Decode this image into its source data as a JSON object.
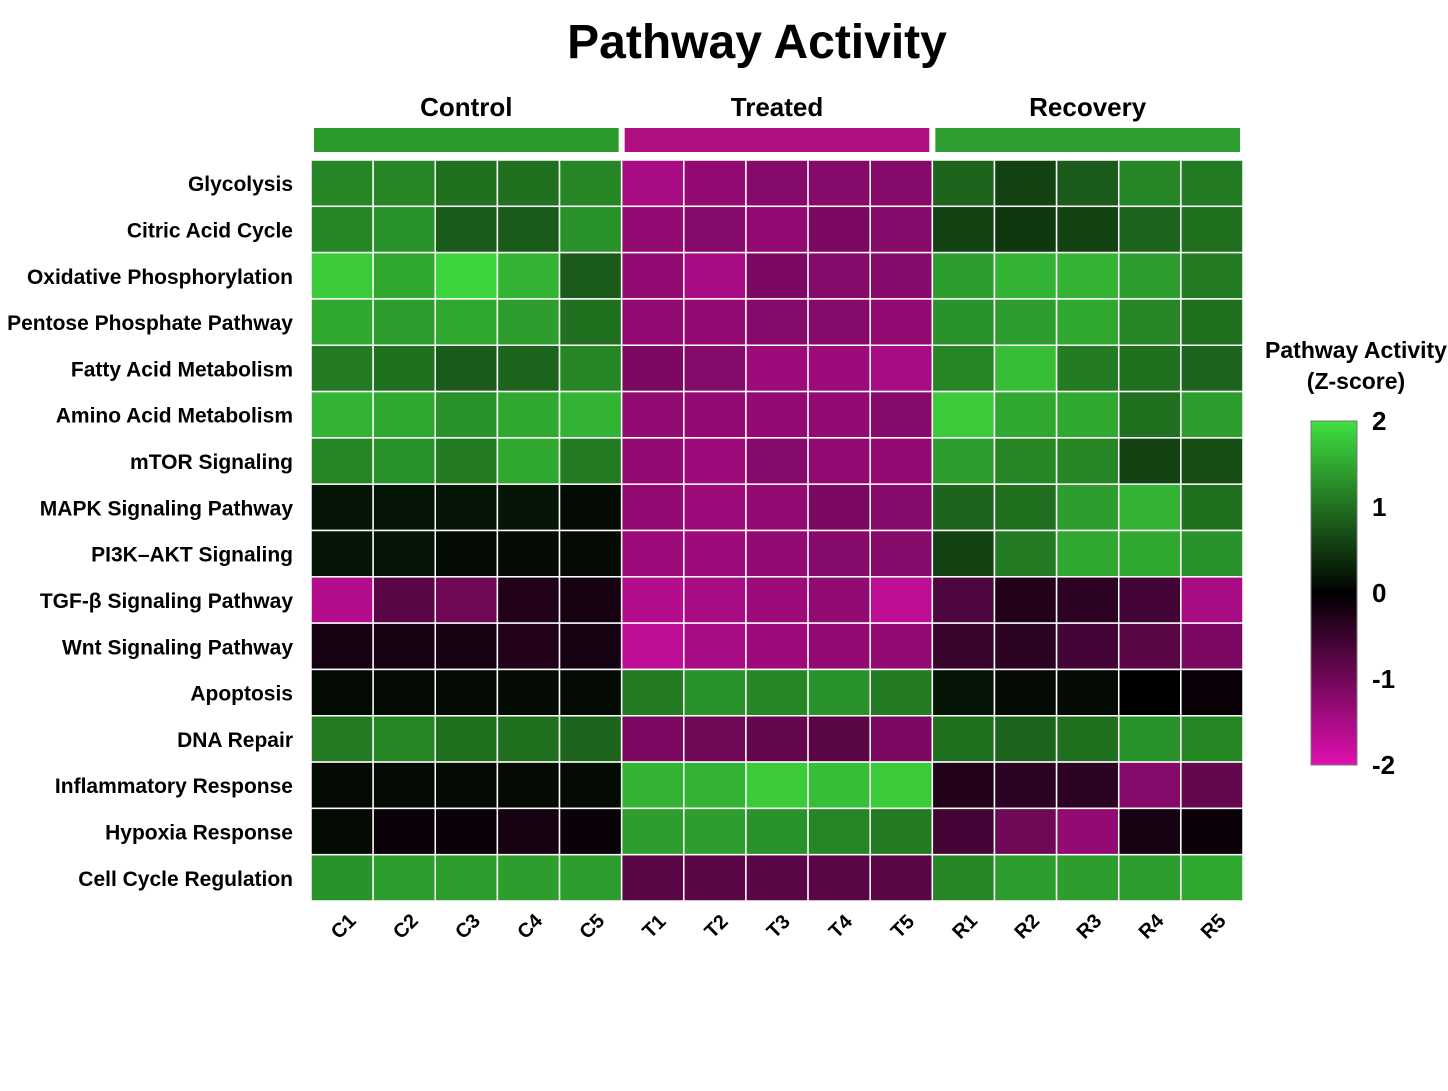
{
  "chart_data": {
    "type": "heatmap",
    "title": "Pathway Activity",
    "groups": [
      {
        "name": "Control",
        "color": "#2a9a2a",
        "columns": [
          "C1",
          "C2",
          "C3",
          "C4",
          "C5"
        ]
      },
      {
        "name": "Treated",
        "color": "#b0107f",
        "columns": [
          "T1",
          "T2",
          "T3",
          "T4",
          "T5"
        ]
      },
      {
        "name": "Recovery",
        "color": "#2e9e30",
        "columns": [
          "R1",
          "R2",
          "R3",
          "R4",
          "R5"
        ]
      }
    ],
    "columns": [
      "C1",
      "C2",
      "C3",
      "C4",
      "C5",
      "T1",
      "T2",
      "T3",
      "T4",
      "T5",
      "R1",
      "R2",
      "R3",
      "R4",
      "R5"
    ],
    "rows": [
      "Glycolysis",
      "Citric Acid Cycle",
      "Oxidative Phosphorylation",
      "Pentose Phosphate Pathway",
      "Fatty Acid Metabolism",
      "Amino Acid Metabolism",
      "mTOR Signaling",
      "MAPK Signaling Pathway",
      "PI3K–AKT Signaling",
      "TGF-β Signaling Pathway",
      "Wnt Signaling Pathway",
      "Apoptosis",
      "DNA Repair",
      "Inflammatory Response",
      "Hypoxia Response",
      "Cell Cycle Regulation"
    ],
    "values": [
      [
        1.2,
        1.2,
        1.0,
        1.0,
        1.2,
        -1.5,
        -1.3,
        -1.2,
        -1.2,
        -1.2,
        0.9,
        0.6,
        0.8,
        1.2,
        1.1
      ],
      [
        1.2,
        1.3,
        0.8,
        0.8,
        1.3,
        -1.3,
        -1.2,
        -1.3,
        -1.1,
        -1.2,
        0.6,
        0.5,
        0.6,
        0.9,
        1.0
      ],
      [
        1.8,
        1.5,
        1.9,
        1.6,
        0.8,
        -1.3,
        -1.5,
        -1.1,
        -1.2,
        -1.2,
        1.4,
        1.6,
        1.6,
        1.4,
        1.1
      ],
      [
        1.5,
        1.4,
        1.5,
        1.4,
        1.0,
        -1.3,
        -1.3,
        -1.2,
        -1.2,
        -1.3,
        1.3,
        1.4,
        1.5,
        1.2,
        1.0
      ],
      [
        1.1,
        1.0,
        0.8,
        0.9,
        1.2,
        -1.1,
        -1.2,
        -1.4,
        -1.4,
        -1.5,
        1.2,
        1.7,
        1.1,
        1.0,
        0.9
      ],
      [
        1.6,
        1.5,
        1.3,
        1.5,
        1.6,
        -1.3,
        -1.3,
        -1.3,
        -1.3,
        -1.2,
        1.8,
        1.5,
        1.5,
        1.0,
        1.4
      ],
      [
        1.2,
        1.3,
        1.1,
        1.5,
        1.1,
        -1.3,
        -1.4,
        -1.2,
        -1.3,
        -1.3,
        1.4,
        1.2,
        1.2,
        0.6,
        0.7
      ],
      [
        0.2,
        0.2,
        0.2,
        0.2,
        0.1,
        -1.3,
        -1.4,
        -1.3,
        -1.1,
        -1.2,
        0.9,
        1.0,
        1.4,
        1.6,
        1.0
      ],
      [
        0.2,
        0.2,
        0.1,
        0.1,
        0.1,
        -1.4,
        -1.4,
        -1.3,
        -1.2,
        -1.2,
        0.6,
        1.1,
        1.5,
        1.5,
        1.3
      ],
      [
        -1.6,
        -0.8,
        -1.0,
        -0.3,
        -0.2,
        -1.6,
        -1.5,
        -1.4,
        -1.3,
        -1.7,
        -0.7,
        -0.3,
        -0.4,
        -0.6,
        -1.5
      ],
      [
        -0.2,
        -0.2,
        -0.2,
        -0.3,
        -0.2,
        -1.7,
        -1.5,
        -1.4,
        -1.3,
        -1.3,
        -0.5,
        -0.4,
        -0.6,
        -0.8,
        -1.1
      ],
      [
        0.1,
        0.1,
        0.1,
        0.1,
        0.1,
        1.1,
        1.3,
        1.2,
        1.3,
        1.1,
        0.2,
        0.1,
        0.1,
        0.0,
        -0.1
      ],
      [
        1.1,
        1.2,
        1.0,
        1.0,
        0.9,
        -1.1,
        -1.0,
        -0.9,
        -0.8,
        -1.1,
        1.0,
        0.9,
        1.0,
        1.3,
        1.2
      ],
      [
        0.1,
        0.1,
        0.1,
        0.1,
        0.1,
        1.6,
        1.6,
        1.8,
        1.7,
        1.8,
        -0.3,
        -0.4,
        -0.4,
        -1.2,
        -0.9
      ],
      [
        0.1,
        -0.1,
        -0.1,
        -0.2,
        -0.1,
        1.4,
        1.4,
        1.3,
        1.2,
        1.1,
        -0.6,
        -1.0,
        -1.3,
        -0.2,
        -0.1
      ],
      [
        1.3,
        1.4,
        1.4,
        1.4,
        1.4,
        -0.8,
        -0.8,
        -0.8,
        -0.8,
        -0.8,
        1.2,
        1.4,
        1.4,
        1.4,
        1.5
      ]
    ],
    "colorbar": {
      "title_line1": "Pathway Activity",
      "title_line2": "(Z-score)",
      "ticks": [
        "2",
        "1",
        "0",
        "-1",
        "-2"
      ],
      "range": [
        -2,
        2
      ],
      "colors": {
        "low": "#e010b0",
        "mid": "#000000",
        "high": "#40e040"
      }
    }
  }
}
